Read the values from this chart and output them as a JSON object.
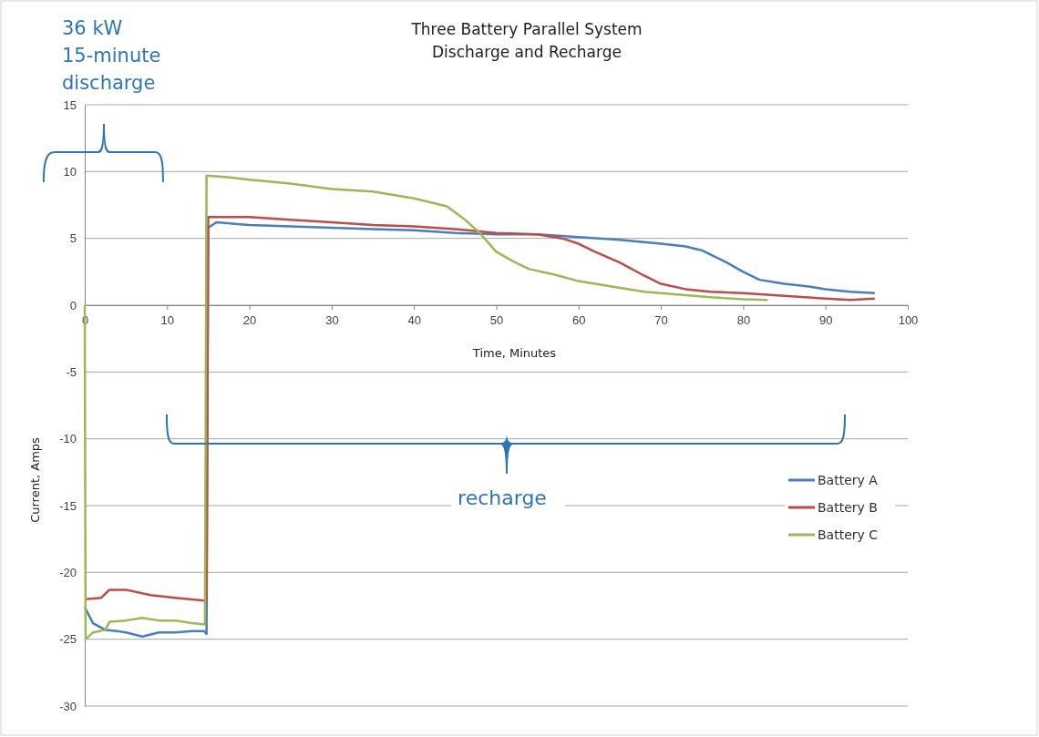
{
  "chart_data": {
    "type": "line",
    "title": "Three Battery Parallel System",
    "subtitle": "Discharge and Recharge",
    "xlabel": "Time, Minutes",
    "ylabel": "Current, Amps",
    "annotations": [
      "36 kW 15-minute discharge",
      "recharge"
    ],
    "xlim": [
      0,
      100
    ],
    "xticks": [
      0,
      10,
      20,
      30,
      40,
      50,
      60,
      70,
      80,
      90,
      100
    ],
    "ylim": [
      -30,
      15
    ],
    "yticks": [
      -30,
      -25,
      -20,
      -15,
      -10,
      -5,
      0,
      5,
      10,
      15
    ],
    "grid": "y",
    "legend": "right",
    "marker": "none",
    "line_style": "solid",
    "series": [
      {
        "name": "Battery A",
        "color": "#4a7ebb",
        "x": [
          0,
          1,
          2.5,
          4,
          5,
          7,
          9,
          11,
          13,
          14.5,
          14.8,
          15,
          16,
          20,
          25,
          30,
          35,
          40,
          45,
          50,
          55,
          60,
          65,
          70,
          73,
          75,
          78,
          80,
          82,
          85,
          88,
          90,
          93,
          96
        ],
        "values": [
          -22.6,
          -23.8,
          -24.3,
          -24.4,
          -24.5,
          -24.8,
          -24.5,
          -24.5,
          -24.4,
          -24.4,
          -24.6,
          5.8,
          6.2,
          6.0,
          5.9,
          5.8,
          5.7,
          5.6,
          5.4,
          5.3,
          5.3,
          5.1,
          4.9,
          4.6,
          4.4,
          4.1,
          3.2,
          2.5,
          1.9,
          1.6,
          1.4,
          1.2,
          1.0,
          0.9
        ]
      },
      {
        "name": "Battery B",
        "color": "#be4b48",
        "x": [
          0,
          2,
          3,
          5,
          8,
          11,
          14.5,
          14.8,
          15,
          20,
          25,
          30,
          35,
          40,
          45,
          50,
          55,
          58,
          60,
          62,
          65,
          68,
          70,
          73,
          76,
          80,
          85,
          90,
          93,
          96
        ],
        "values": [
          -22.0,
          -21.9,
          -21.3,
          -21.3,
          -21.7,
          -21.9,
          -22.1,
          -22.1,
          6.6,
          6.6,
          6.4,
          6.2,
          6.0,
          5.9,
          5.7,
          5.4,
          5.3,
          5.0,
          4.6,
          4.0,
          3.2,
          2.2,
          1.6,
          1.2,
          1.0,
          0.9,
          0.7,
          0.5,
          0.4,
          0.5
        ]
      },
      {
        "name": "Battery C",
        "color": "#98b954",
        "x": [
          0,
          0.1,
          1,
          2.5,
          3,
          5,
          7,
          9,
          11,
          13,
          14.6,
          14.8,
          17,
          20,
          25,
          30,
          35,
          40,
          44,
          46,
          48,
          50,
          52,
          54,
          57,
          60,
          64,
          68,
          72,
          76,
          80,
          83
        ],
        "values": [
          0,
          -25,
          -24.5,
          -24.3,
          -23.7,
          -23.6,
          -23.4,
          -23.6,
          -23.6,
          -23.8,
          -23.9,
          9.7,
          9.6,
          9.4,
          9.1,
          8.7,
          8.5,
          8.0,
          7.4,
          6.5,
          5.4,
          4.0,
          3.3,
          2.7,
          2.3,
          1.8,
          1.4,
          1.0,
          0.8,
          0.6,
          0.45,
          0.4
        ]
      }
    ]
  }
}
